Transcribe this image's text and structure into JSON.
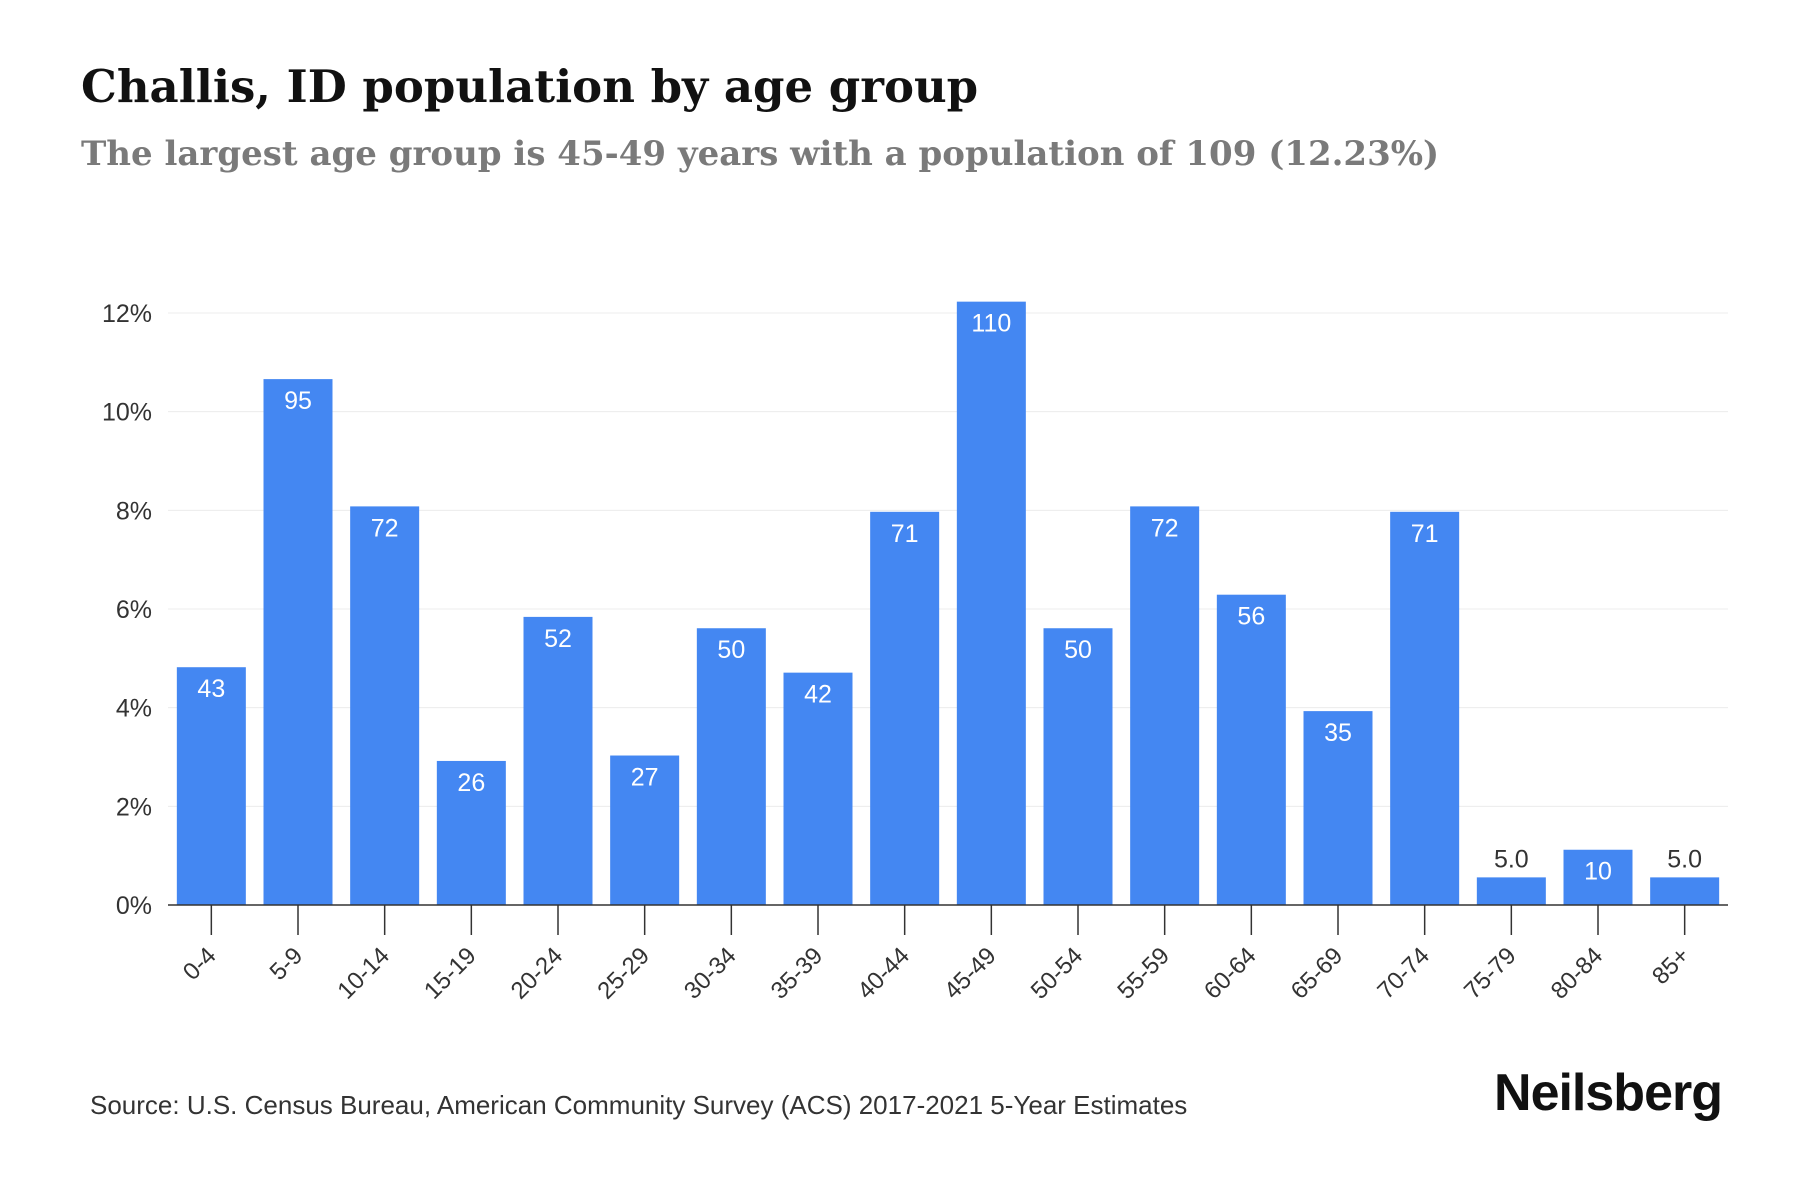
{
  "header": {
    "title": "Challis, ID population by age group",
    "subtitle": "The largest age group is 45-49 years with a population of 109 (12.23%)"
  },
  "footer": {
    "source": "Source: U.S. Census Bureau, American Community Survey (ACS) 2017-2021 5-Year Estimates",
    "brand": "Neilsberg"
  },
  "colors": {
    "bar": "#4487f2",
    "bar_label": "#ffffff",
    "outside_label": "#333333",
    "grid": "#ececec",
    "axis": "#333333",
    "tick_label": "#333333"
  },
  "chart_data": {
    "type": "bar",
    "categories": [
      "0-4",
      "5-9",
      "10-14",
      "15-19",
      "20-24",
      "25-29",
      "30-34",
      "35-39",
      "40-44",
      "45-49",
      "50-54",
      "55-59",
      "60-64",
      "65-69",
      "70-74",
      "75-79",
      "80-84",
      "85+"
    ],
    "series": [
      {
        "values": [
          4.82,
          10.66,
          8.08,
          2.92,
          5.84,
          3.03,
          5.61,
          4.71,
          7.97,
          12.23,
          5.61,
          8.08,
          6.29,
          3.93,
          7.97,
          0.56,
          1.12,
          0.56
        ],
        "labels": [
          "43",
          "95",
          "72",
          "26",
          "52",
          "27",
          "50",
          "42",
          "71",
          "110",
          "50",
          "72",
          "56",
          "35",
          "71",
          "5.0",
          "10",
          "5.0"
        ]
      }
    ],
    "ylim": [
      0,
      12
    ],
    "yticks": [
      0,
      2,
      4,
      6,
      8,
      10,
      12
    ],
    "ytick_labels": [
      "0%",
      "2%",
      "4%",
      "6%",
      "8%",
      "10%",
      "12%"
    ],
    "xlabel": "",
    "ylabel": "",
    "grid": true,
    "legend": "none"
  }
}
